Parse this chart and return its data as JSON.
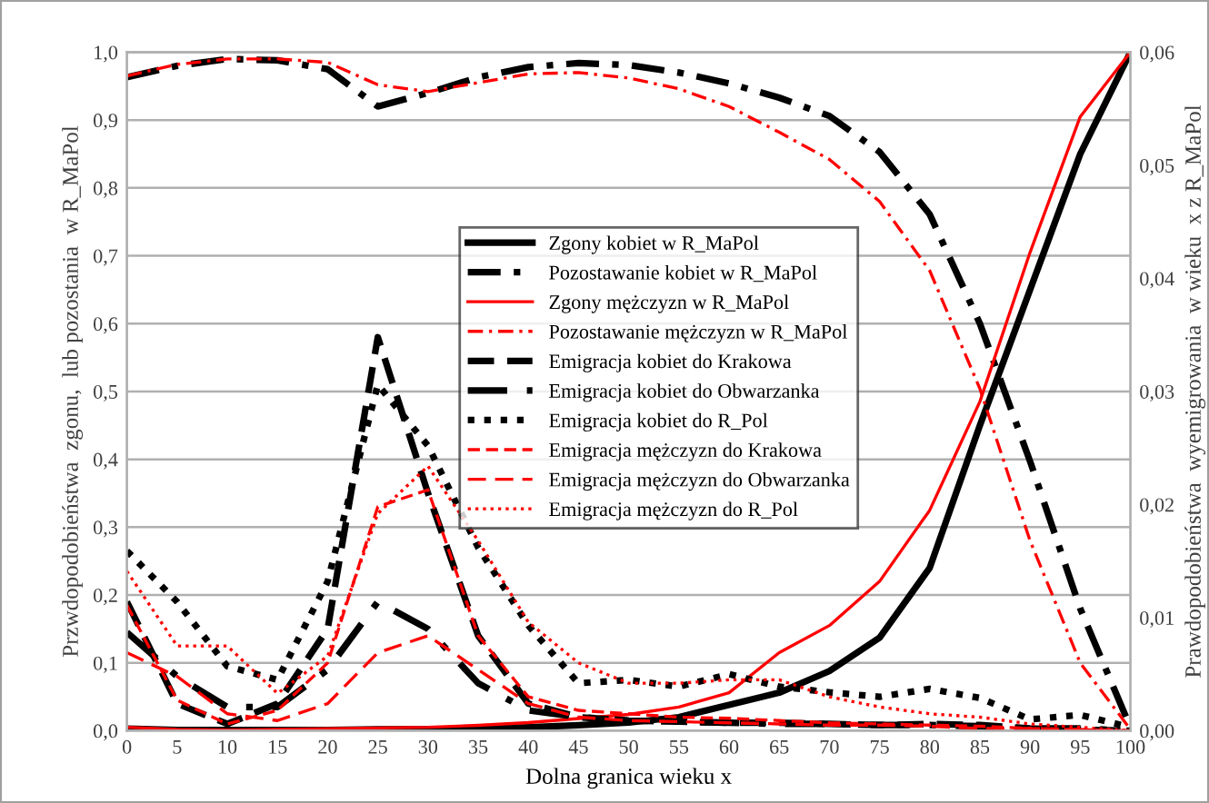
{
  "chart_data": {
    "type": "line",
    "xlabel": "Dolna granica wieku x",
    "ylabel": "Przwdopodobieństwa  zgonu,  lub pozostania  w R_MaPol",
    "y2label": "Prawdopodobieństwa  wyemigrowania  w wieku  x z R_MaPol",
    "x": [
      0,
      5,
      10,
      15,
      20,
      25,
      30,
      35,
      40,
      45,
      50,
      55,
      60,
      65,
      70,
      75,
      80,
      85,
      90,
      95,
      100
    ],
    "xlim": [
      0,
      100
    ],
    "xticks": [
      0,
      5,
      10,
      15,
      20,
      25,
      30,
      35,
      40,
      45,
      50,
      55,
      60,
      65,
      70,
      75,
      80,
      85,
      90,
      95,
      100
    ],
    "ylim": [
      0,
      1
    ],
    "yticks": [
      {
        "value": 0,
        "label": "0,0"
      },
      {
        "value": 0.1,
        "label": "0,1"
      },
      {
        "value": 0.2,
        "label": "0,2"
      },
      {
        "value": 0.3,
        "label": "0,3"
      },
      {
        "value": 0.4,
        "label": "0,4"
      },
      {
        "value": 0.5,
        "label": "0,5"
      },
      {
        "value": 0.6,
        "label": "0,6"
      },
      {
        "value": 0.7,
        "label": "0,7"
      },
      {
        "value": 0.8,
        "label": "0,8"
      },
      {
        "value": 0.9,
        "label": "0,9"
      },
      {
        "value": 1,
        "label": "1,0"
      }
    ],
    "y2lim": [
      0,
      0.06
    ],
    "y2ticks": [
      {
        "value": 0,
        "label": "0,00"
      },
      {
        "value": 0.01,
        "label": "0,01"
      },
      {
        "value": 0.02,
        "label": "0,02"
      },
      {
        "value": 0.03,
        "label": "0,03"
      },
      {
        "value": 0.04,
        "label": "0,04"
      },
      {
        "value": 0.05,
        "label": "0,05"
      },
      {
        "value": 0.06,
        "label": "0,06"
      }
    ],
    "grid": "y",
    "legend": "center",
    "marker": "none",
    "series": [
      {
        "name": "Zgony kobiet w R_MaPol",
        "color": "#000000",
        "line_style": "solid",
        "values": [
          0.003,
          0.001,
          0.001,
          0.001,
          0.001,
          0.002,
          0.002,
          0.003,
          0.005,
          0.008,
          0.012,
          0.02,
          0.038,
          0.056,
          0.088,
          0.137,
          0.24,
          0.45,
          0.65,
          0.85,
          1.0
        ]
      },
      {
        "name": "Pozostawanie kobiet w R_MaPol",
        "color": "#000000",
        "line_style": "dashdot",
        "values": [
          0.963,
          0.98,
          0.99,
          0.988,
          0.975,
          0.92,
          0.94,
          0.963,
          0.978,
          0.984,
          0.981,
          0.97,
          0.954,
          0.933,
          0.906,
          0.853,
          0.761,
          0.6,
          0.397,
          0.18,
          0.005
        ]
      },
      {
        "name": "Zgony mężczyzn w R_MaPol",
        "color": "#ff0000",
        "line_style": "solid",
        "values": [
          0.005,
          0.002,
          0.001,
          0.002,
          0.003,
          0.004,
          0.005,
          0.008,
          0.012,
          0.018,
          0.024,
          0.035,
          0.056,
          0.115,
          0.155,
          0.22,
          0.325,
          0.485,
          0.705,
          0.905,
          1.0
        ]
      },
      {
        "name": "Pozostawanie mężczyzn w R_MaPol",
        "color": "#ff0000",
        "line_style": "dashdot",
        "values": [
          0.965,
          0.982,
          0.99,
          0.99,
          0.985,
          0.952,
          0.942,
          0.955,
          0.968,
          0.97,
          0.962,
          0.946,
          0.92,
          0.882,
          0.842,
          0.78,
          0.678,
          0.504,
          0.28,
          0.1,
          0.002
        ]
      },
      {
        "name": "Emigracja kobiet do Krakowa",
        "color": "#000000",
        "line_style": "dashed",
        "axis": "y2",
        "values": [
          0.0114,
          0.0024,
          0.0006,
          0.0024,
          0.009,
          0.0348,
          0.021,
          0.0084,
          0.0024,
          0.0012,
          0.0009,
          0.0008,
          0.0007,
          0.0007,
          0.0006,
          0.0005,
          0.0006,
          0.0005,
          0.0002,
          0.0001,
          0
        ]
      },
      {
        "name": "Emigracja kobiet do Obwarzanka",
        "color": "#000000",
        "line_style": "longdashdot",
        "axis": "y2",
        "values": [
          0.0087,
          0.0048,
          0.0021,
          0.0021,
          0.0054,
          0.0114,
          0.009,
          0.0042,
          0.0018,
          0.0012,
          0.0009,
          0.0008,
          0.0007,
          0.0006,
          0.0006,
          0.0005,
          0.0005,
          0.0004,
          0.0002,
          0.0002,
          0
        ]
      },
      {
        "name": "Emigracja kobiet do R_Pol",
        "color": "#000000",
        "line_style": "dotted",
        "axis": "y2",
        "values": [
          0.0159,
          0.0114,
          0.0057,
          0.0045,
          0.0132,
          0.0306,
          0.0252,
          0.0162,
          0.0093,
          0.0042,
          0.0045,
          0.0039,
          0.005,
          0.0039,
          0.0034,
          0.003,
          0.0037,
          0.0029,
          0.001,
          0.0014,
          0.0003
        ]
      },
      {
        "name": "Emigracja mężczyzn do Krakowa",
        "color": "#ff0000",
        "line_style": "dashed",
        "axis": "y2",
        "values": [
          0.0111,
          0.0027,
          0.0006,
          0.0018,
          0.006,
          0.0198,
          0.0213,
          0.0084,
          0.003,
          0.0018,
          0.0015,
          0.0012,
          0.0011,
          0.0009,
          0.0007,
          0.0006,
          0.0005,
          0.0004,
          0.0002,
          0.0001,
          0
        ]
      },
      {
        "name": "Emigracja mężczyzn do Obwarzanka",
        "color": "#ff0000",
        "line_style": "longdash",
        "axis": "y2",
        "values": [
          0.0069,
          0.0048,
          0.0015,
          0.0009,
          0.0024,
          0.0069,
          0.0084,
          0.0054,
          0.0024,
          0.0012,
          0.0009,
          0.0008,
          0.0007,
          0.0006,
          0.0005,
          0.0005,
          0.0004,
          0.0002,
          0.0002,
          0.0001,
          0
        ]
      },
      {
        "name": "Emigracja mężczyzn do R_Pol",
        "color": "#ff0000",
        "line_style": "dotted",
        "axis": "y2",
        "values": [
          0.0141,
          0.0075,
          0.0075,
          0.0033,
          0.0066,
          0.0192,
          0.0234,
          0.0168,
          0.0096,
          0.006,
          0.0042,
          0.0042,
          0.0045,
          0.0045,
          0.003,
          0.0021,
          0.0015,
          0.0012,
          0.0006,
          0.0003,
          0
        ]
      }
    ]
  }
}
